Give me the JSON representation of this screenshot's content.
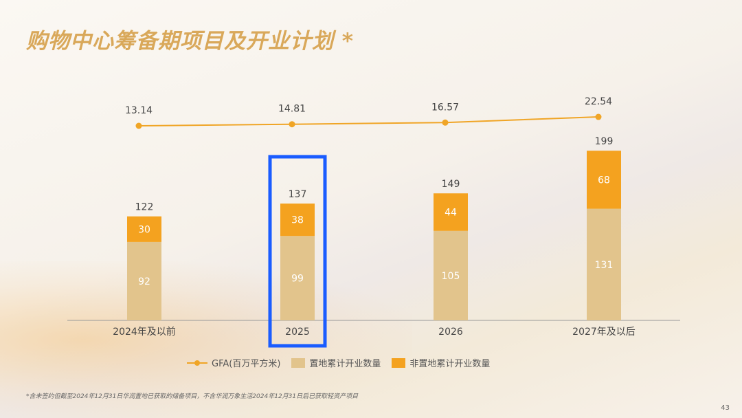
{
  "title": "购物中心筹备期项目及开业计划 *",
  "footnote": "*含未签约但截至2024年12月31日华润置地已获取的储备项目，不含华润万象生活2024年12月31日后已获取轻资产项目",
  "page_number": "43",
  "colors": {
    "owned": "#e2c48c",
    "non_owned": "#f4a21f",
    "line": "#f0a526",
    "highlight": "#1a5cff"
  },
  "chart_data": {
    "type": "bar",
    "stacked": true,
    "categories": [
      "2024年及以前",
      "2025",
      "2026",
      "2027年及以后"
    ],
    "series": [
      {
        "name": "置地累计开业数量",
        "values": [
          92,
          99,
          105,
          131
        ]
      },
      {
        "name": "非置地累计开业数量",
        "values": [
          30,
          38,
          44,
          68
        ]
      }
    ],
    "totals": [
      122,
      137,
      149,
      199
    ],
    "line_series": {
      "name": "GFA(百万平方米)",
      "values": [
        13.14,
        14.81,
        16.57,
        22.54
      ]
    },
    "highlighted_category": "2025",
    "legend_placement": "bottom"
  }
}
